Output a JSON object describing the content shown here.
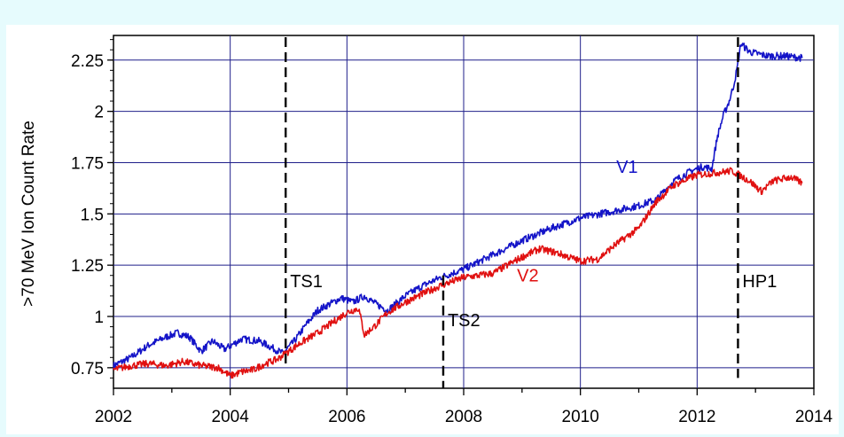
{
  "chart_data": {
    "type": "line",
    "title": "",
    "xlabel": "",
    "ylabel": ">70  MeV  Ion   Count   Rate",
    "xlim": [
      2002,
      2014
    ],
    "ylim": [
      0.65,
      2.37
    ],
    "x_ticks": [
      "2002",
      "2004",
      "2006",
      "2008",
      "2010",
      "2012",
      "2014"
    ],
    "y_ticks": [
      "0.75",
      "1",
      "1.25",
      "1.5",
      "1.75",
      "2",
      "2.25"
    ],
    "y_tick_values": [
      0.75,
      1,
      1.25,
      1.5,
      1.75,
      2,
      2.25
    ],
    "grid": true,
    "series": [
      {
        "name": "V1",
        "color": "#1414c8",
        "x": [
          2002.0,
          2002.3,
          2002.6,
          2002.9,
          2003.1,
          2003.3,
          2003.5,
          2003.7,
          2003.9,
          2004.2,
          2004.5,
          2004.7,
          2004.9,
          2005.1,
          2005.3,
          2005.5,
          2005.7,
          2005.9,
          2006.1,
          2006.3,
          2006.5,
          2006.7,
          2007.0,
          2007.3,
          2007.6,
          2008.0,
          2008.5,
          2009.0,
          2009.5,
          2010.0,
          2010.5,
          2011.0,
          2011.3,
          2011.6,
          2011.9,
          2012.1,
          2012.25,
          2012.35,
          2012.45,
          2012.55,
          2012.62,
          2012.68,
          2012.75,
          2012.9,
          2013.2,
          2013.5,
          2013.8
        ],
        "values": [
          0.76,
          0.8,
          0.86,
          0.9,
          0.92,
          0.9,
          0.83,
          0.88,
          0.84,
          0.89,
          0.88,
          0.85,
          0.82,
          0.88,
          0.96,
          1.03,
          1.06,
          1.09,
          1.07,
          1.1,
          1.06,
          1.03,
          1.1,
          1.15,
          1.19,
          1.23,
          1.3,
          1.37,
          1.43,
          1.48,
          1.51,
          1.54,
          1.57,
          1.66,
          1.71,
          1.73,
          1.72,
          1.88,
          1.98,
          2.05,
          2.12,
          2.2,
          2.33,
          2.29,
          2.27,
          2.27,
          2.26
        ]
      },
      {
        "name": "V2",
        "color": "#e01010",
        "x": [
          2002.0,
          2002.3,
          2002.6,
          2002.9,
          2003.2,
          2003.5,
          2003.8,
          2004.0,
          2004.2,
          2004.4,
          2004.6,
          2004.8,
          2005.0,
          2005.2,
          2005.5,
          2005.8,
          2006.0,
          2006.2,
          2006.3,
          2006.5,
          2006.7,
          2007.0,
          2007.3,
          2007.6,
          2008.0,
          2008.5,
          2009.0,
          2009.3,
          2009.6,
          2010.0,
          2010.3,
          2010.6,
          2011.0,
          2011.3,
          2011.6,
          2012.0,
          2012.3,
          2012.6,
          2012.9,
          2013.1,
          2013.3,
          2013.6,
          2013.8
        ],
        "values": [
          0.74,
          0.76,
          0.77,
          0.76,
          0.78,
          0.76,
          0.75,
          0.71,
          0.73,
          0.74,
          0.77,
          0.79,
          0.83,
          0.87,
          0.92,
          0.98,
          1.02,
          1.04,
          0.91,
          0.96,
          1.02,
          1.07,
          1.11,
          1.15,
          1.19,
          1.21,
          1.29,
          1.33,
          1.31,
          1.27,
          1.28,
          1.35,
          1.43,
          1.56,
          1.64,
          1.69,
          1.7,
          1.71,
          1.66,
          1.61,
          1.66,
          1.68,
          1.65
        ]
      }
    ],
    "annotations": [
      {
        "label": "TS1",
        "x": 2004.95,
        "color": "#000000"
      },
      {
        "label": "TS2",
        "x": 2007.65,
        "color": "#000000"
      },
      {
        "label": "HP1",
        "x": 2012.7,
        "color": "#000000"
      },
      {
        "label": "V1",
        "x": 2010.8,
        "y": 1.7,
        "color": "#1414c8"
      },
      {
        "label": "V2",
        "x": 2009.1,
        "y": 1.17,
        "color": "#e01010"
      }
    ]
  }
}
